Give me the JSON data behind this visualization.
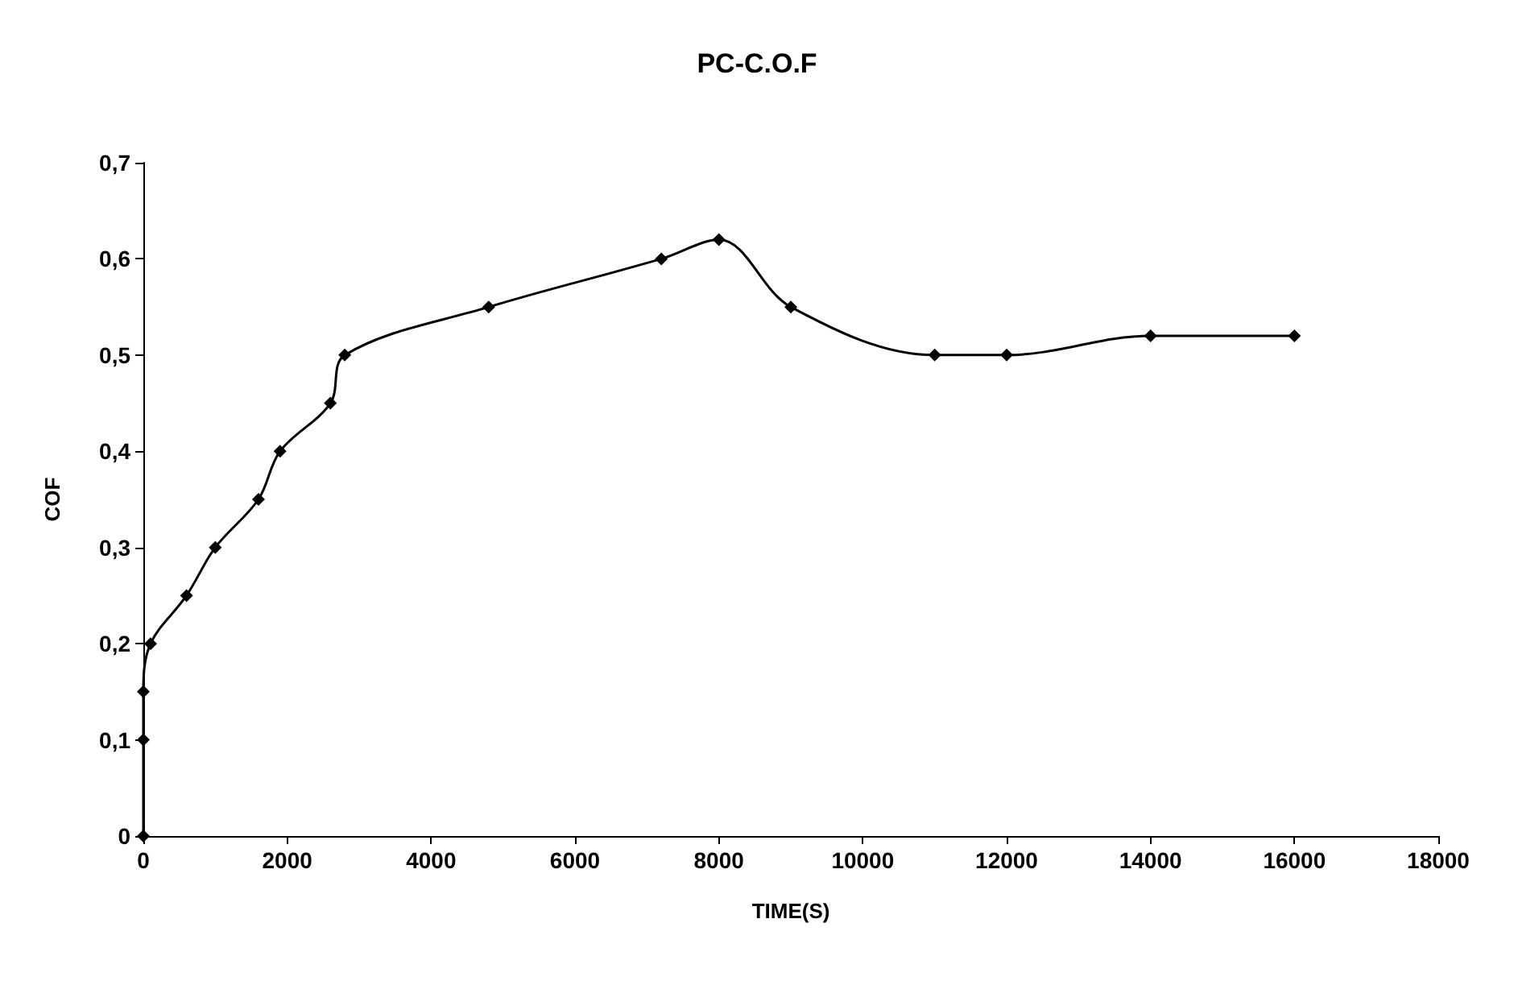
{
  "chart_data": {
    "type": "line",
    "title": "PC-C.O.F",
    "xlabel": "TIME(S)",
    "ylabel": "COF",
    "x": [
      0,
      0,
      0,
      100,
      600,
      1000,
      1600,
      1900,
      2600,
      2800,
      4800,
      7200,
      8000,
      9000,
      11000,
      12000,
      14000,
      16000
    ],
    "series": [
      {
        "color": "#000000",
        "values": [
          0,
          0.1,
          0.15,
          0.2,
          0.25,
          0.3,
          0.35,
          0.4,
          0.45,
          0.5,
          0.55,
          0.6,
          0.62,
          0.55,
          0.5,
          0.5,
          0.52,
          0.52
        ]
      }
    ],
    "xlim": [
      0,
      18000
    ],
    "xticks": [
      0,
      2000,
      4000,
      6000,
      8000,
      10000,
      12000,
      14000,
      16000,
      18000
    ],
    "ylim": [
      0,
      0.7
    ],
    "yticks": [
      0,
      {
        "value": 0.1,
        "label": "0,1"
      },
      {
        "value": 0.2,
        "label": "0,2"
      },
      {
        "value": 0.3,
        "label": "0,3"
      },
      {
        "value": 0.4,
        "label": "0,4"
      },
      {
        "value": 0.5,
        "label": "0,5"
      },
      {
        "value": 0.6,
        "label": "0,6"
      },
      {
        "value": 0.7,
        "label": "0,7"
      }
    ],
    "grid": false,
    "marker": "diamond",
    "line_style": "solid"
  }
}
